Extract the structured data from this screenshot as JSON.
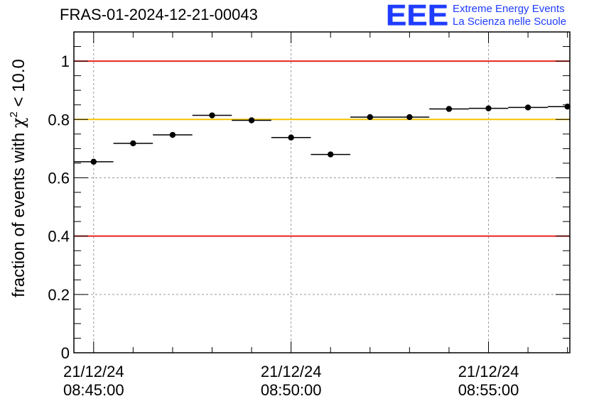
{
  "header": {
    "title": "FRAS-01-2024-12-21-00043",
    "logo_letters": "EEE",
    "logo_line1": "Extreme Energy Events",
    "logo_line2": "La Scienza nelle Scuole"
  },
  "chart_data": {
    "type": "scatter",
    "title": "FRAS-01-2024-12-21-00043",
    "ylabel_prefix": "fraction of events with ",
    "ylabel_symbol": "χ",
    "ylabel_sup": "2",
    "ylabel_suffix": " < 10.0",
    "ylim": [
      0,
      1.1
    ],
    "xlim_minutes": [
      -0.5,
      12.06
    ],
    "yticks": [
      0,
      0.2,
      0.4,
      0.6,
      0.8,
      1
    ],
    "ytick_labels": [
      "0",
      "0.2",
      "0.4",
      "0.6",
      "0.8",
      "1"
    ],
    "xticks_minutes": [
      0,
      5,
      10
    ],
    "xtick_labels": [
      [
        "21/12/24",
        "08:45:00"
      ],
      [
        "21/12/24",
        "08:50:00"
      ],
      [
        "21/12/24",
        "08:55:00"
      ]
    ],
    "grid": true,
    "reference_lines": [
      {
        "y": 1.0,
        "color": "#e8231f"
      },
      {
        "y": 0.8,
        "color": "#f5c400"
      },
      {
        "y": 0.4,
        "color": "#e8231f"
      }
    ],
    "series": [
      {
        "bin_width_minutes": 1,
        "x_minutes": [
          0,
          1,
          2,
          3,
          4,
          5,
          6,
          7,
          8,
          9,
          10,
          11,
          12
        ],
        "values": [
          0.655,
          0.718,
          0.747,
          0.814,
          0.797,
          0.738,
          0.68,
          0.808,
          0.808,
          0.836,
          0.838,
          0.841,
          0.844
        ]
      }
    ]
  }
}
